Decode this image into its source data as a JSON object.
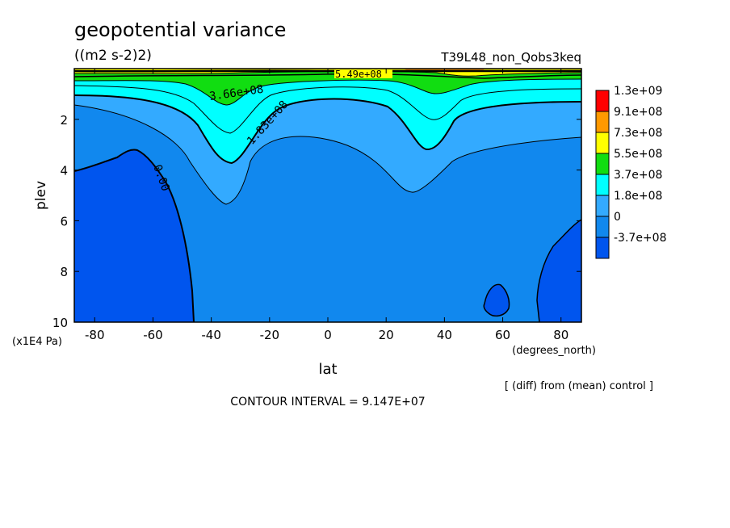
{
  "chart_data": {
    "type": "contour",
    "title": "geopotential variance",
    "units": "((m2 s-2)2)",
    "run_label": "T39L48_non_Qobs3keq",
    "xlabel": "lat",
    "x_units": "(degrees_north)",
    "ylabel": "plev",
    "y_units": "(x1E4 Pa)",
    "xlim": [
      -87,
      87
    ],
    "ylim": [
      10,
      0
    ],
    "xticks": [
      -80,
      -60,
      -40,
      -20,
      0,
      20,
      40,
      60,
      80
    ],
    "yticks": [
      2,
      4,
      6,
      8,
      10
    ],
    "contour_interval_text": "CONTOUR INTERVAL = 9.147E+07",
    "note": "[ (diff) from (mean) control ]",
    "legend": {
      "labels": [
        "1.3e+09",
        "9.1e+08",
        "7.3e+08",
        "5.5e+08",
        "3.7e+08",
        "1.8e+08",
        "0",
        "-3.7e+08"
      ],
      "colors": [
        "#ff0000",
        "#ff9900",
        "#ffff00",
        "#11dd11",
        "#00ffff",
        "#33aaff",
        "#1188ee",
        "#0055ee"
      ]
    },
    "contour_labels": [
      "5.49e+08",
      "3.66e+08",
      "1.83e+08",
      "0.00"
    ]
  },
  "colors": {
    "neg": "#0055ee",
    "zero": "#1188ee",
    "l1": "#33aaff",
    "l2": "#00ffff",
    "l3": "#11dd11",
    "l4": "#ffff00",
    "l5": "#ff9900"
  }
}
